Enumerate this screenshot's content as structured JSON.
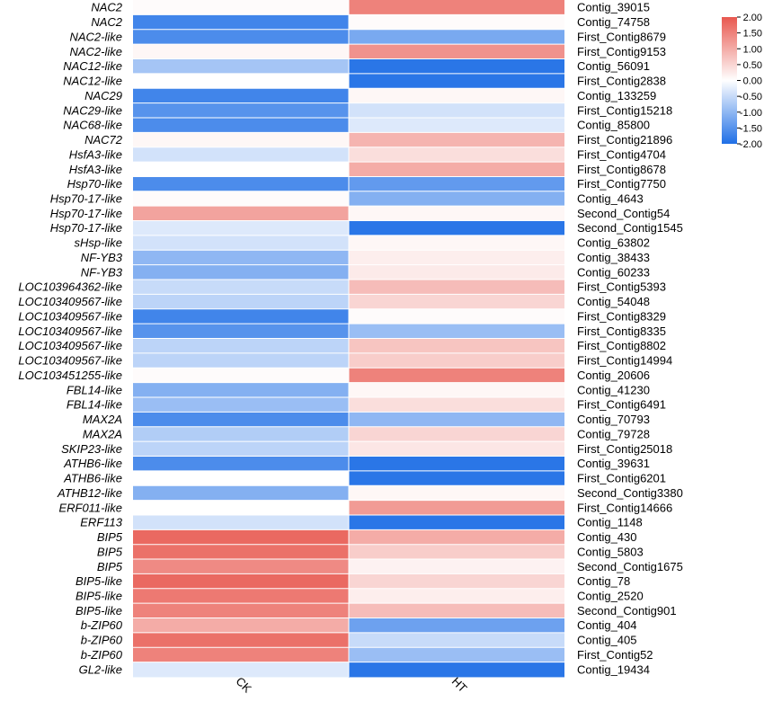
{
  "chart_data": {
    "type": "heatmap",
    "columns": [
      "CK",
      "HT"
    ],
    "colorbar": {
      "min": -2.0,
      "max": 2.0,
      "low_color": "#1f6fe6",
      "mid_color": "#ffffff",
      "high_color": "#e8584f",
      "tick_labels": [
        "2.00",
        "1.50",
        "1.00",
        "0.50",
        "0.00",
        "-0.50",
        "-1.00",
        "-1.50",
        "-2.00"
      ]
    },
    "rows": [
      {
        "gene": "NAC2",
        "contig": "Contig_39015",
        "values": [
          0.05,
          1.5
        ]
      },
      {
        "gene": "NAC2",
        "contig": "Contig_74758",
        "values": [
          -1.7,
          0.05
        ]
      },
      {
        "gene": "NAC2-like",
        "contig": "First_Contig8679",
        "values": [
          -1.6,
          -1.2
        ]
      },
      {
        "gene": "NAC2-like",
        "contig": "First_Contig9153",
        "values": [
          0.1,
          1.3
        ]
      },
      {
        "gene": "NAC12-like",
        "contig": "Contig_56091",
        "values": [
          -0.8,
          -1.9
        ]
      },
      {
        "gene": "NAC12-like",
        "contig": "First_Contig2838",
        "values": [
          0.0,
          -1.9
        ]
      },
      {
        "gene": "NAC29",
        "contig": "Contig_133259",
        "values": [
          -1.7,
          0.1
        ]
      },
      {
        "gene": "NAC29-like",
        "contig": "First_Contig15218",
        "values": [
          -1.5,
          -0.4
        ]
      },
      {
        "gene": "NAC68-like",
        "contig": "Contig_85800",
        "values": [
          -1.6,
          -0.3
        ]
      },
      {
        "gene": "NAC72",
        "contig": "First_Contig21896",
        "values": [
          0.1,
          0.9
        ]
      },
      {
        "gene": "HsfA3-like",
        "contig": "First_Contig4704",
        "values": [
          -0.4,
          0.4
        ]
      },
      {
        "gene": "HsfA3-like",
        "contig": "First_Contig8678",
        "values": [
          0.0,
          1.0
        ]
      },
      {
        "gene": "Hsp70-like",
        "contig": "First_Contig7750",
        "values": [
          -1.6,
          -1.4
        ]
      },
      {
        "gene": "Hsp70-17-like",
        "contig": "Contig_4643",
        "values": [
          0.05,
          -1.1
        ]
      },
      {
        "gene": "Hsp70-17-like",
        "contig": "Second_Contig54",
        "values": [
          1.1,
          0.1
        ]
      },
      {
        "gene": "Hsp70-17-like",
        "contig": "Second_Contig1545",
        "values": [
          -0.3,
          -1.9
        ]
      },
      {
        "gene": "sHsp-like",
        "contig": "Contig_63802",
        "values": [
          -0.4,
          0.1
        ]
      },
      {
        "gene": "NF-YB3",
        "contig": "Contig_38433",
        "values": [
          -1.0,
          0.2
        ]
      },
      {
        "gene": "NF-YB3",
        "contig": "Contig_60233",
        "values": [
          -1.1,
          0.25
        ]
      },
      {
        "gene": "LOC103964362-like",
        "contig": "First_Contig5393",
        "values": [
          -0.5,
          0.8
        ]
      },
      {
        "gene": "LOC103409567-like",
        "contig": "Contig_54048",
        "values": [
          -0.6,
          0.5
        ]
      },
      {
        "gene": "LOC103409567-like",
        "contig": "First_Contig8329",
        "values": [
          -1.7,
          0.05
        ]
      },
      {
        "gene": "LOC103409567-like",
        "contig": "First_Contig8335",
        "values": [
          -1.5,
          -0.9
        ]
      },
      {
        "gene": "LOC103409567-like",
        "contig": "First_Contig8802",
        "values": [
          -0.6,
          0.7
        ]
      },
      {
        "gene": "LOC103409567-like",
        "contig": "First_Contig14994",
        "values": [
          -0.6,
          0.6
        ]
      },
      {
        "gene": "LOC103451255-like",
        "contig": "Contig_20606",
        "values": [
          0.05,
          1.5
        ]
      },
      {
        "gene": "FBL14-like",
        "contig": "Contig_41230",
        "values": [
          -1.1,
          0.1
        ]
      },
      {
        "gene": "FBL14-like",
        "contig": "First_Contig6491",
        "values": [
          -0.9,
          0.4
        ]
      },
      {
        "gene": "MAX2A",
        "contig": "Contig_70793",
        "values": [
          -1.6,
          -1.0
        ]
      },
      {
        "gene": "MAX2A",
        "contig": "Contig_79728",
        "values": [
          -0.7,
          0.5
        ]
      },
      {
        "gene": "SKIP23-like",
        "contig": "First_Contig25018",
        "values": [
          -0.6,
          0.3
        ]
      },
      {
        "gene": "ATHB6-like",
        "contig": "Contig_39631",
        "values": [
          -1.6,
          -1.9
        ]
      },
      {
        "gene": "ATHB6-like",
        "contig": "First_Contig6201",
        "values": [
          0.0,
          -1.9
        ]
      },
      {
        "gene": "ATHB12-like",
        "contig": "Second_Contig3380",
        "values": [
          -1.1,
          0.1
        ]
      },
      {
        "gene": "ERF011-like",
        "contig": "First_Contig14666",
        "values": [
          0.0,
          1.2
        ]
      },
      {
        "gene": "ERF113",
        "contig": "Contig_1148",
        "values": [
          -0.4,
          -1.9
        ]
      },
      {
        "gene": "BIP5",
        "contig": "Contig_430",
        "values": [
          1.8,
          1.0
        ]
      },
      {
        "gene": "BIP5",
        "contig": "Contig_5803",
        "values": [
          1.7,
          0.6
        ]
      },
      {
        "gene": "BIP5",
        "contig": "Second_Contig1675",
        "values": [
          1.4,
          0.15
        ]
      },
      {
        "gene": "BIP5-like",
        "contig": "Contig_78",
        "values": [
          1.8,
          0.5
        ]
      },
      {
        "gene": "BIP5-like",
        "contig": "Contig_2520",
        "values": [
          1.6,
          0.2
        ]
      },
      {
        "gene": "BIP5-like",
        "contig": "Second_Contig901",
        "values": [
          1.5,
          0.8
        ]
      },
      {
        "gene": "b-ZIP60",
        "contig": "Contig_404",
        "values": [
          1.0,
          -1.3
        ]
      },
      {
        "gene": "b-ZIP60",
        "contig": "Contig_405",
        "values": [
          1.7,
          -0.5
        ]
      },
      {
        "gene": "b-ZIP60",
        "contig": "First_Contig52",
        "values": [
          1.5,
          -0.9
        ]
      },
      {
        "gene": "GL2-like",
        "contig": "Contig_19434",
        "values": [
          -0.3,
          -1.9
        ]
      }
    ]
  }
}
